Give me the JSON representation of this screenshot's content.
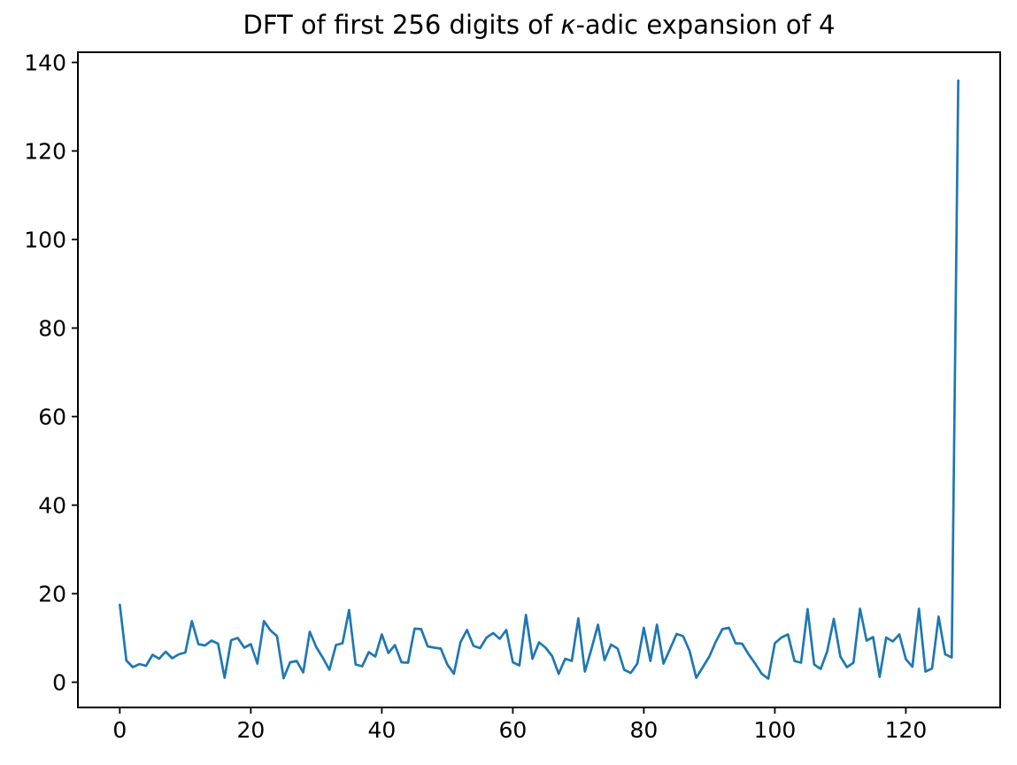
{
  "figure": {
    "title_prefix": "DFT of first 256 digits of ",
    "title_kappa": "κ",
    "title_suffix": "-adic expansion of 4"
  },
  "chart_data": {
    "type": "line",
    "title": "DFT of first 256 digits of κ-adic expansion of 4",
    "xlabel": "",
    "ylabel": "",
    "legend": null,
    "grid": false,
    "line_color": "#1f77b4",
    "axis_color": "#000000",
    "n_points": 129,
    "x_start": 0,
    "x_step": 1,
    "values": [
      17.5,
      4.9,
      3.4,
      4.1,
      3.7,
      6.2,
      5.3,
      6.9,
      5.4,
      6.3,
      6.7,
      13.8,
      8.6,
      8.3,
      9.4,
      8.7,
      1.0,
      9.5,
      10.0,
      7.8,
      8.6,
      4.2,
      13.8,
      11.7,
      10.4,
      0.9,
      4.5,
      4.8,
      2.2,
      11.4,
      7.9,
      5.5,
      2.8,
      8.4,
      8.8,
      16.3,
      4.0,
      3.6,
      6.8,
      5.8,
      10.8,
      6.6,
      8.4,
      4.5,
      4.4,
      12.1,
      12.0,
      8.1,
      7.8,
      7.6,
      4.0,
      1.9,
      9.0,
      11.8,
      8.2,
      7.7,
      10.1,
      11.1,
      9.8,
      11.8,
      4.5,
      3.8,
      15.2,
      5.3,
      9.0,
      7.8,
      5.9,
      1.9,
      5.3,
      4.8,
      14.4,
      2.4,
      7.5,
      13.0,
      5.0,
      8.5,
      7.6,
      2.8,
      2.1,
      4.2,
      12.3,
      4.8,
      13.0,
      4.2,
      7.5,
      10.9,
      10.4,
      7.0,
      1.0,
      3.4,
      5.8,
      9.2,
      12.0,
      12.3,
      8.8,
      8.7,
      6.3,
      4.2,
      1.9,
      0.8,
      8.8,
      10.1,
      10.8,
      4.8,
      4.4,
      16.5,
      4.0,
      3.0,
      7.0,
      14.3,
      5.8,
      3.4,
      4.4,
      16.6,
      9.4,
      10.2,
      1.2,
      10.1,
      9.2,
      10.8,
      5.2,
      3.5,
      16.6,
      2.4,
      3.1,
      14.8,
      6.3,
      5.6,
      135.9
    ],
    "xlim": [
      -6.4,
      134.4
    ],
    "ylim": [
      -5.7,
      142.3
    ],
    "xticks": [
      0,
      20,
      40,
      60,
      80,
      100,
      120
    ],
    "yticks": [
      0,
      20,
      40,
      60,
      80,
      100,
      120,
      140
    ]
  }
}
